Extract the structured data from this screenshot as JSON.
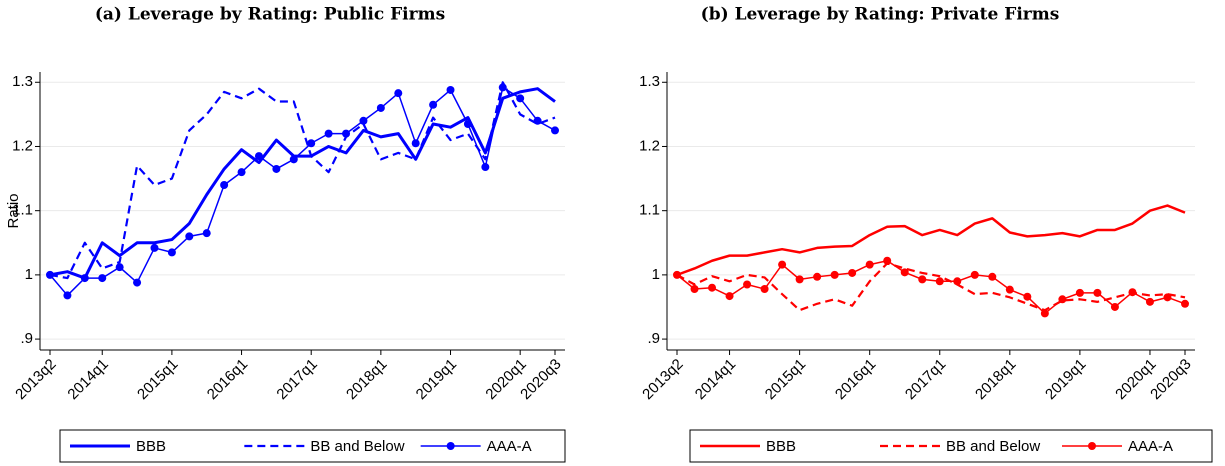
{
  "chart_data": [
    {
      "type": "line",
      "title": "(a) Leverage by Rating: Public Firms",
      "y_label": "Ratio",
      "categories": [
        "2013q2",
        null,
        null,
        "2014q1",
        null,
        null,
        null,
        "2015q1",
        null,
        null,
        null,
        "2016q1",
        null,
        null,
        null,
        "2017q1",
        null,
        null,
        null,
        "2018q1",
        null,
        null,
        null,
        "2019q1",
        null,
        null,
        null,
        "2020q1",
        null,
        "2020q3"
      ],
      "ylim": [
        0.883,
        1.316
      ],
      "yticks": [
        {
          "value": 0.9,
          "label": ".9"
        },
        1,
        1.1,
        1.2,
        1.3
      ],
      "grid": true,
      "legend": "bottom",
      "series": [
        {
          "name": "BBB",
          "color": "#0000ff",
          "linestyle": "solid",
          "linewidth": 3,
          "values": [
            1.0,
            1.005,
            0.995,
            1.05,
            1.03,
            1.05,
            1.05,
            1.055,
            1.08,
            1.125,
            1.165,
            1.195,
            1.175,
            1.21,
            1.185,
            1.185,
            1.2,
            1.19,
            1.225,
            1.215,
            1.22,
            1.18,
            1.235,
            1.23,
            1.245,
            1.19,
            1.275,
            1.285,
            1.29,
            1.27
          ]
        },
        {
          "name": "BB and Below",
          "color": "#0000ff",
          "linestyle": "dashed",
          "linewidth": 2.2,
          "values": [
            1.0,
            0.995,
            1.05,
            1.01,
            1.02,
            1.17,
            1.14,
            1.15,
            1.225,
            1.25,
            1.285,
            1.275,
            1.29,
            1.27,
            1.27,
            1.185,
            1.16,
            1.215,
            1.235,
            1.18,
            1.19,
            1.18,
            1.245,
            1.21,
            1.22,
            1.18,
            1.3,
            1.25,
            1.235,
            1.245
          ]
        },
        {
          "name": "AAA-A",
          "color": "#0000ff",
          "linestyle": "solid",
          "linewidth": 1.5,
          "marker": "circle",
          "values": [
            1.0,
            0.968,
            0.995,
            0.995,
            1.012,
            0.988,
            1.042,
            1.035,
            1.06,
            1.065,
            1.14,
            1.16,
            1.185,
            1.165,
            1.18,
            1.205,
            1.22,
            1.22,
            1.24,
            1.26,
            1.283,
            1.205,
            1.265,
            1.288,
            1.235,
            1.168,
            1.292,
            1.275,
            1.24,
            1.225
          ]
        }
      ]
    },
    {
      "type": "line",
      "title": "(b) Leverage by Rating: Private Firms",
      "categories": [
        "2013q2",
        null,
        null,
        "2014q1",
        null,
        null,
        null,
        "2015q1",
        null,
        null,
        null,
        "2016q1",
        null,
        null,
        null,
        "2017q1",
        null,
        null,
        null,
        "2018q1",
        null,
        null,
        null,
        "2019q1",
        null,
        null,
        null,
        "2020q1",
        null,
        "2020q3"
      ],
      "ylim": [
        0.883,
        1.316
      ],
      "yticks": [
        {
          "value": 0.9,
          "label": ".9"
        },
        1,
        1.1,
        1.2,
        1.3
      ],
      "grid": true,
      "legend": "bottom",
      "series": [
        {
          "name": "BBB",
          "color": "#ff0000",
          "linestyle": "solid",
          "linewidth": 2.5,
          "values": [
            1.0,
            1.01,
            1.022,
            1.03,
            1.03,
            1.035,
            1.04,
            1.035,
            1.042,
            1.044,
            1.045,
            1.062,
            1.075,
            1.076,
            1.062,
            1.07,
            1.062,
            1.08,
            1.088,
            1.066,
            1.06,
            1.062,
            1.065,
            1.06,
            1.07,
            1.07,
            1.08,
            1.1,
            1.108,
            1.097
          ]
        },
        {
          "name": "BB and Below",
          "color": "#ff0000",
          "linestyle": "dashed",
          "linewidth": 2.2,
          "values": [
            1.0,
            0.985,
            0.998,
            0.99,
            1.0,
            0.996,
            0.97,
            0.945,
            0.955,
            0.962,
            0.952,
            0.99,
            1.018,
            1.01,
            1.003,
            0.998,
            0.985,
            0.97,
            0.972,
            0.965,
            0.955,
            0.945,
            0.96,
            0.962,
            0.958,
            0.965,
            0.972,
            0.968,
            0.97,
            0.965
          ]
        },
        {
          "name": "AAA-A",
          "color": "#ff0000",
          "linestyle": "solid",
          "linewidth": 1.5,
          "marker": "circle",
          "values": [
            1.0,
            0.978,
            0.98,
            0.967,
            0.985,
            0.978,
            1.016,
            0.993,
            0.997,
            1.0,
            1.003,
            1.016,
            1.022,
            1.004,
            0.993,
            0.99,
            0.99,
            1.0,
            0.997,
            0.977,
            0.966,
            0.94,
            0.962,
            0.972,
            0.972,
            0.95,
            0.973,
            0.958,
            0.965,
            0.955
          ]
        }
      ]
    }
  ]
}
